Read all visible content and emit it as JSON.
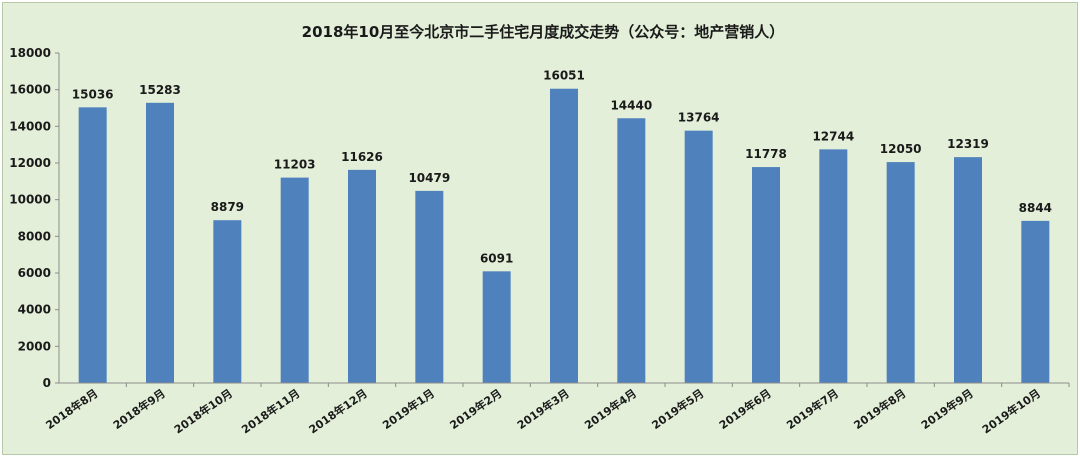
{
  "chart_data": {
    "type": "bar",
    "title": "2018年10月至今北京市二手住宅月度成交走势（公众号：地产营销人）",
    "xlabel": "",
    "ylabel": "",
    "ylim": [
      0,
      18000
    ],
    "yticks": [
      0,
      2000,
      4000,
      6000,
      8000,
      10000,
      12000,
      14000,
      16000,
      18000
    ],
    "grid": false,
    "legend": "none",
    "bar_color": "#4f81bd",
    "categories": [
      "2018年8月",
      "2018年9月",
      "2018年10月",
      "2018年11月",
      "2018年12月",
      "2019年1月",
      "2019年2月",
      "2019年3月",
      "2019年4月",
      "2019年5月",
      "2019年6月",
      "2019年7月",
      "2019年8月",
      "2019年9月",
      "2019年10月"
    ],
    "values": [
      15036,
      15283,
      8879,
      11203,
      11626,
      10479,
      6091,
      16051,
      14440,
      13764,
      11778,
      12744,
      12050,
      12319,
      8844
    ]
  }
}
